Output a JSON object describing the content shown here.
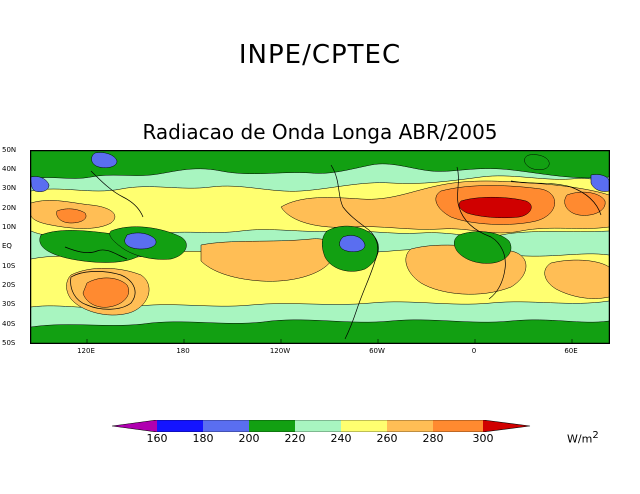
{
  "header": {
    "org_title": "INPE/CPTEC",
    "map_title": "Radiacao de Onda Longa ABR/2005"
  },
  "map": {
    "lat_labels": [
      "50N",
      "40N",
      "30N",
      "20N",
      "10N",
      "EQ",
      "10S",
      "20S",
      "30S",
      "40S",
      "50S"
    ],
    "lon_labels": [
      "120E",
      "180",
      "120W",
      "60W",
      "0",
      "60E"
    ],
    "colors": {
      "below_160": "#b000b0",
      "160_180": "#1414ff",
      "180_200": "#5a6ef0",
      "200_220": "#12a012",
      "220_240": "#a8f5c0",
      "240_260": "#ffff70",
      "260_280": "#ffbe55",
      "280_300": "#ff8a30",
      "above_300": "#d00000"
    }
  },
  "legend": {
    "levels": [
      "160",
      "180",
      "200",
      "220",
      "240",
      "260",
      "280",
      "300"
    ],
    "unit": "W/m",
    "unit_exp": "2"
  }
}
